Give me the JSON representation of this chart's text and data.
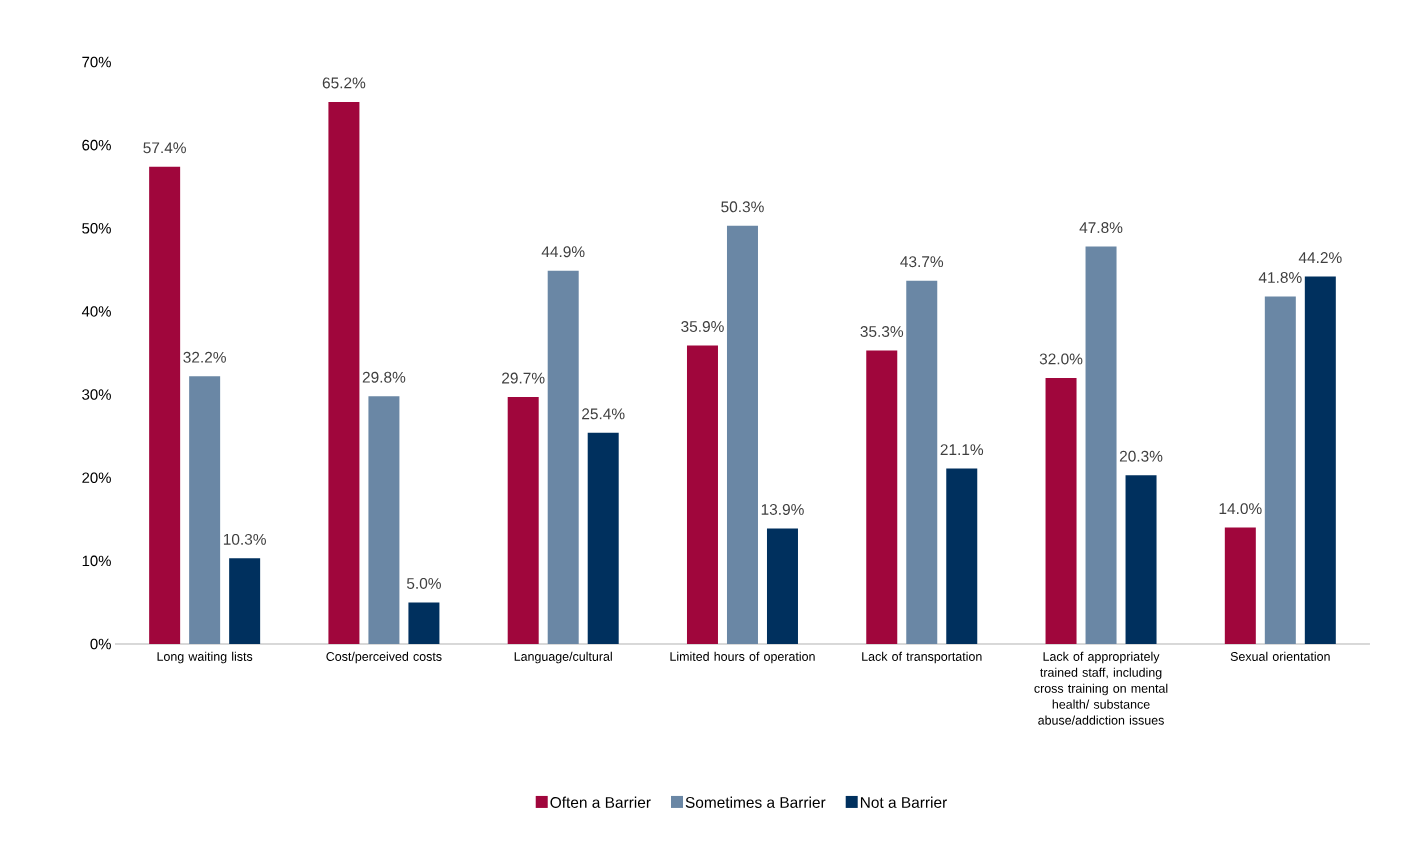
{
  "chart_data": {
    "type": "bar",
    "categories": [
      "Long waiting lists",
      "Cost/perceived costs",
      "Language/cultural",
      "Limited hours of operation",
      "Lack of transportation",
      "Lack of appropriately trained staff, including cross training on mental health/ substance abuse/addiction issues",
      "Sexual orientation"
    ],
    "series": [
      {
        "name": "Often a Barrier",
        "color": "#a0063c",
        "values": [
          57.4,
          65.2,
          29.7,
          35.9,
          35.3,
          32.0,
          14.0
        ],
        "value_labels": [
          "57.4%",
          "65.2%",
          "29.7%",
          "35.9%",
          "35.3%",
          "32.0%",
          "14.0%"
        ]
      },
      {
        "name": "Sometimes a Barrier",
        "color": "#6a87a5",
        "values": [
          32.2,
          29.8,
          44.9,
          50.3,
          43.7,
          47.8,
          41.8
        ],
        "value_labels": [
          "32.2%",
          "29.8%",
          "44.9%",
          "50.3%",
          "43.7%",
          "47.8%",
          "41.8%"
        ]
      },
      {
        "name": "Not a Barrier",
        "color": "#00305e",
        "values": [
          10.3,
          5.0,
          25.4,
          13.9,
          21.1,
          20.3,
          44.2
        ],
        "value_labels": [
          "10.3%",
          "5.0%",
          "25.4%",
          "13.9%",
          "21.1%",
          "20.3%",
          "44.2%"
        ]
      }
    ],
    "ylim": [
      0,
      70
    ],
    "yticks": [
      {
        "value": 0,
        "label": "0%"
      },
      {
        "value": 10,
        "label": "10%"
      },
      {
        "value": 20,
        "label": "20%"
      },
      {
        "value": 30,
        "label": "30%"
      },
      {
        "value": 40,
        "label": "40%"
      },
      {
        "value": 50,
        "label": "50%"
      },
      {
        "value": 60,
        "label": "60%"
      },
      {
        "value": 70,
        "label": "70%"
      }
    ],
    "legend": "bottom"
  }
}
